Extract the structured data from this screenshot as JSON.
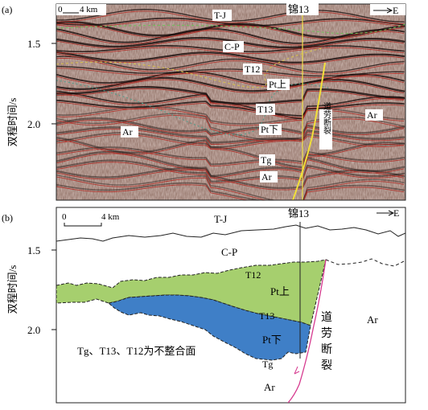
{
  "panel_a": {
    "label": "(a)",
    "scale": "0",
    "scale_km": "4 km",
    "well": "锦13",
    "direction": "E",
    "y_axis_label": "双程时间/s",
    "y_ticks": [
      "1.5",
      "2.0"
    ],
    "horizons": {
      "tj": "T-J",
      "cp": "C-P",
      "t12": "T12",
      "pt_upper": "Pt上",
      "t13": "T13",
      "pt_lower": "Pt下",
      "tg": "Tg",
      "ar_left": "Ar",
      "ar_bottom": "Ar",
      "ar_right": "Ar"
    },
    "fault": "道劳断裂"
  },
  "panel_b": {
    "label": "(b)",
    "scale": "0",
    "scale_km": "4 km",
    "well": "锦13",
    "direction": "E",
    "y_axis_label": "双程时间/s",
    "y_ticks": [
      "1.5",
      "2.0"
    ],
    "units": {
      "tj": "T-J",
      "cp": "C-P",
      "t12": "T12",
      "pt_upper": "Pt上",
      "t13": "T13",
      "pt_lower": "Pt下",
      "tg": "Tg",
      "ar_bottom": "Ar",
      "ar_right": "Ar"
    },
    "fault_chars": [
      "道",
      "劳",
      "断",
      "裂"
    ],
    "note": "Tg、T13、T12为不整合面"
  },
  "colors": {
    "pt_upper_fill": "#a6cf6e",
    "pt_lower_fill": "#3f7fc7",
    "fault_line": "#d63a8f",
    "seismic_bg": "#8a6a5f"
  }
}
